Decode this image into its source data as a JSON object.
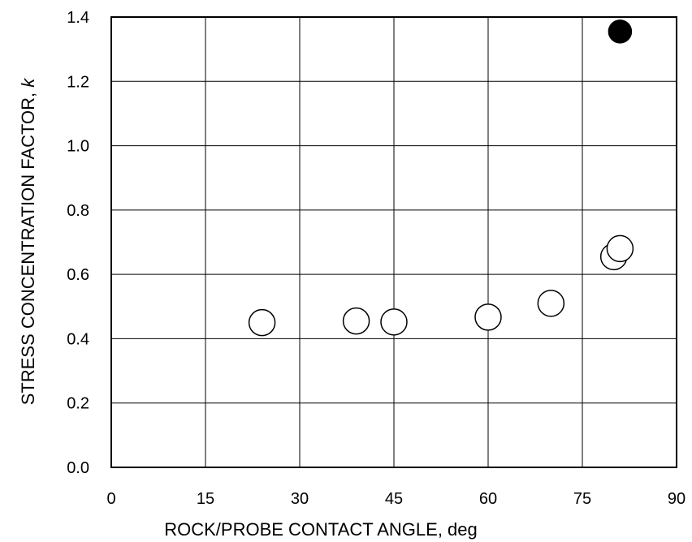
{
  "chart_data": {
    "type": "scatter",
    "xlabel": "ROCK/PROBE CONTACT ANGLE, deg",
    "ylabel": "STRESS CONCENTRATION FACTOR, k",
    "xlim": [
      0,
      90
    ],
    "ylim": [
      0.0,
      1.4
    ],
    "x_ticks": [
      "0",
      "15",
      "30",
      "45",
      "60",
      "75",
      "90"
    ],
    "y_ticks": [
      "0.0",
      "0.2",
      "0.4",
      "0.6",
      "0.8",
      "1.0",
      "1.2",
      "1.4"
    ],
    "grid": true,
    "legend": "none",
    "series": [
      {
        "marker": "open-circle",
        "color": "#000000",
        "points": [
          {
            "x": 24,
            "y": 0.45
          },
          {
            "x": 39,
            "y": 0.455
          },
          {
            "x": 45,
            "y": 0.452
          },
          {
            "x": 60,
            "y": 0.467
          },
          {
            "x": 70,
            "y": 0.51
          },
          {
            "x": 80,
            "y": 0.655
          },
          {
            "x": 81,
            "y": 0.68
          }
        ]
      },
      {
        "marker": "filled-circle",
        "color": "#000000",
        "points": [
          {
            "x": 81,
            "y": 1.355
          }
        ]
      }
    ]
  }
}
